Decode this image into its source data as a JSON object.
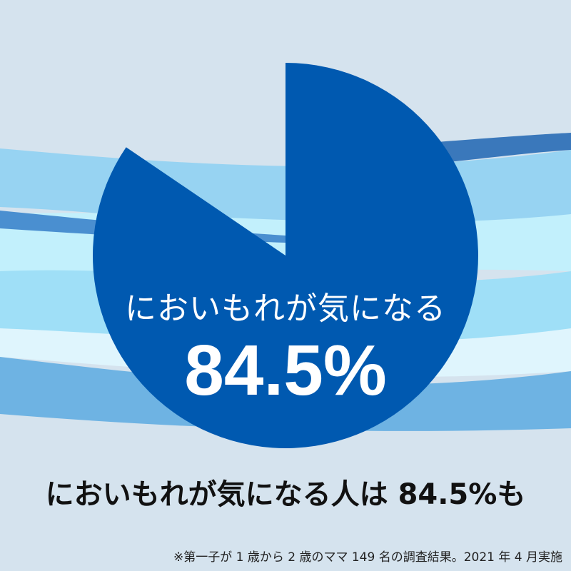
{
  "colors": {
    "background": "#d5e3ee",
    "pie_fill": "#0059b0",
    "text_inner": "#ffffff"
  },
  "chart_data": {
    "type": "pie",
    "categories": [
      "においもれが気になる",
      ""
    ],
    "values": [
      84.5,
      15.5
    ],
    "shown_slices": [
      true,
      false
    ],
    "start": "12 o'clock, clockwise",
    "data_label": "84.5%",
    "label": "においもれが気になる"
  },
  "headline": "においもれが気になる人は 84.5%も",
  "footnote": "※第一子が 1 歳から 2 歳のママ 149 名の調査結果。2021 年 4 月実施"
}
